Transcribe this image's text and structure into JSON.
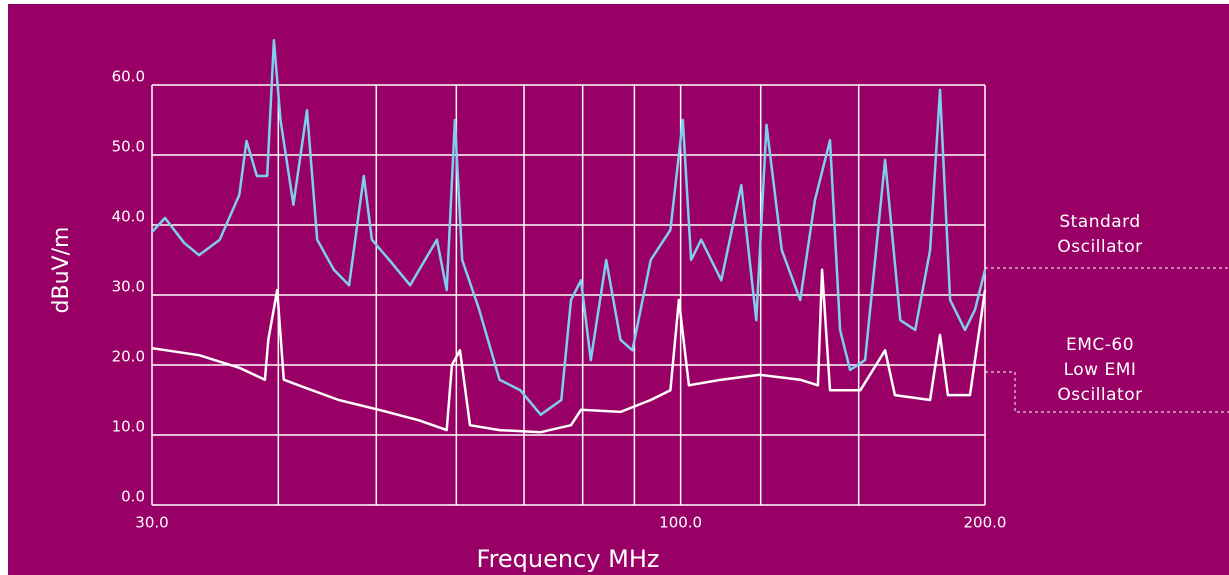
{
  "chart_data": {
    "type": "line",
    "xlabel": "Frequency MHz",
    "ylabel": "dBuV/m",
    "xscale": "log",
    "xlim": [
      30,
      200
    ],
    "ylim": [
      0,
      60
    ],
    "xticks": [
      {
        "value": 30,
        "label": "30.0"
      },
      {
        "value": 100,
        "label": "100.0"
      },
      {
        "value": 200,
        "label": "200.0"
      }
    ],
    "x_grid": [
      40,
      50,
      60,
      70,
      80,
      90,
      120,
      150
    ],
    "yticks": [
      {
        "value": 0,
        "label": "0.0"
      },
      {
        "value": 10,
        "label": "10.0"
      },
      {
        "value": 20,
        "label": "20.0"
      },
      {
        "value": 30,
        "label": "30.0"
      },
      {
        "value": 40,
        "label": "40.0"
      },
      {
        "value": 50,
        "label": "50.0"
      },
      {
        "value": 60,
        "label": "60.0"
      }
    ],
    "grid": true,
    "background": "#990066",
    "grid_color": "#ffffff",
    "series": [
      {
        "name": "Standard Oscillator",
        "color": "#7ecfef",
        "x": [
          30.0,
          30.9,
          32.3,
          33.4,
          35.0,
          36.6,
          37.2,
          38.1,
          39.0,
          39.6,
          40.2,
          41.4,
          42.7,
          43.7,
          45.4,
          47.0,
          48.6,
          49.5,
          51.5,
          54.0,
          57.4,
          58.7,
          59.8,
          60.8,
          63.2,
          66.2,
          69.4,
          72.7,
          76.2,
          77.9,
          79.7,
          81.5,
          84.4,
          87.2,
          89.6,
          93.4,
          97.7,
          100.5,
          102.4,
          104.8,
          109.7,
          114.8,
          118.8,
          121.6,
          125.9,
          131.3,
          135.8,
          140.5,
          143.8,
          147.1,
          152.2,
          159.3,
          164.9,
          170.6,
          176.5,
          180.5,
          184.7,
          191.1,
          195.5,
          200.0
        ],
        "values": [
          39,
          41,
          37.4,
          35.7,
          37.9,
          44.3,
          52,
          47,
          47,
          66.4,
          55,
          42.9,
          56.4,
          37.9,
          33.6,
          31.4,
          47,
          37.9,
          35,
          31.4,
          37.9,
          30.7,
          55,
          35,
          27.9,
          17.9,
          16.4,
          12.9,
          15,
          29.3,
          32.1,
          20.7,
          35,
          23.6,
          22.1,
          35,
          39.3,
          55,
          35,
          37.9,
          32.1,
          45.7,
          26.4,
          54.3,
          36.4,
          29.3,
          43.6,
          52.1,
          25,
          19.3,
          20.7,
          49.3,
          26.4,
          25,
          36.4,
          59.3,
          29.3,
          25,
          27.9,
          33.6
        ]
      },
      {
        "name": "EMC-60 Low EMI Oscillator",
        "color": "#ffffff",
        "x": [
          30.0,
          33.4,
          36.6,
          38.8,
          39.1,
          39.9,
          40.5,
          41.9,
          45.9,
          50.3,
          55.1,
          58.7,
          59.4,
          60.5,
          61.9,
          66.2,
          72.7,
          77.9,
          79.7,
          87.2,
          93.4,
          97.7,
          99.6,
          101.9,
          109.7,
          119.7,
          131.3,
          136.7,
          138.0,
          140.5,
          150.6,
          159.3,
          162.9,
          176.5,
          180.5,
          183.8,
          193.3,
          200.0
        ],
        "values": [
          22.4,
          21.4,
          19.6,
          17.9,
          23.6,
          30.7,
          17.9,
          17.1,
          15,
          13.6,
          12.1,
          10.7,
          20,
          22.1,
          11.4,
          10.7,
          10.4,
          11.4,
          13.6,
          13.3,
          15,
          16.4,
          29.3,
          17.1,
          17.9,
          18.6,
          17.9,
          17.1,
          33.6,
          16.4,
          16.4,
          22.1,
          15.7,
          15,
          24.3,
          15.7,
          15.7,
          30.7
        ]
      }
    ]
  }
}
